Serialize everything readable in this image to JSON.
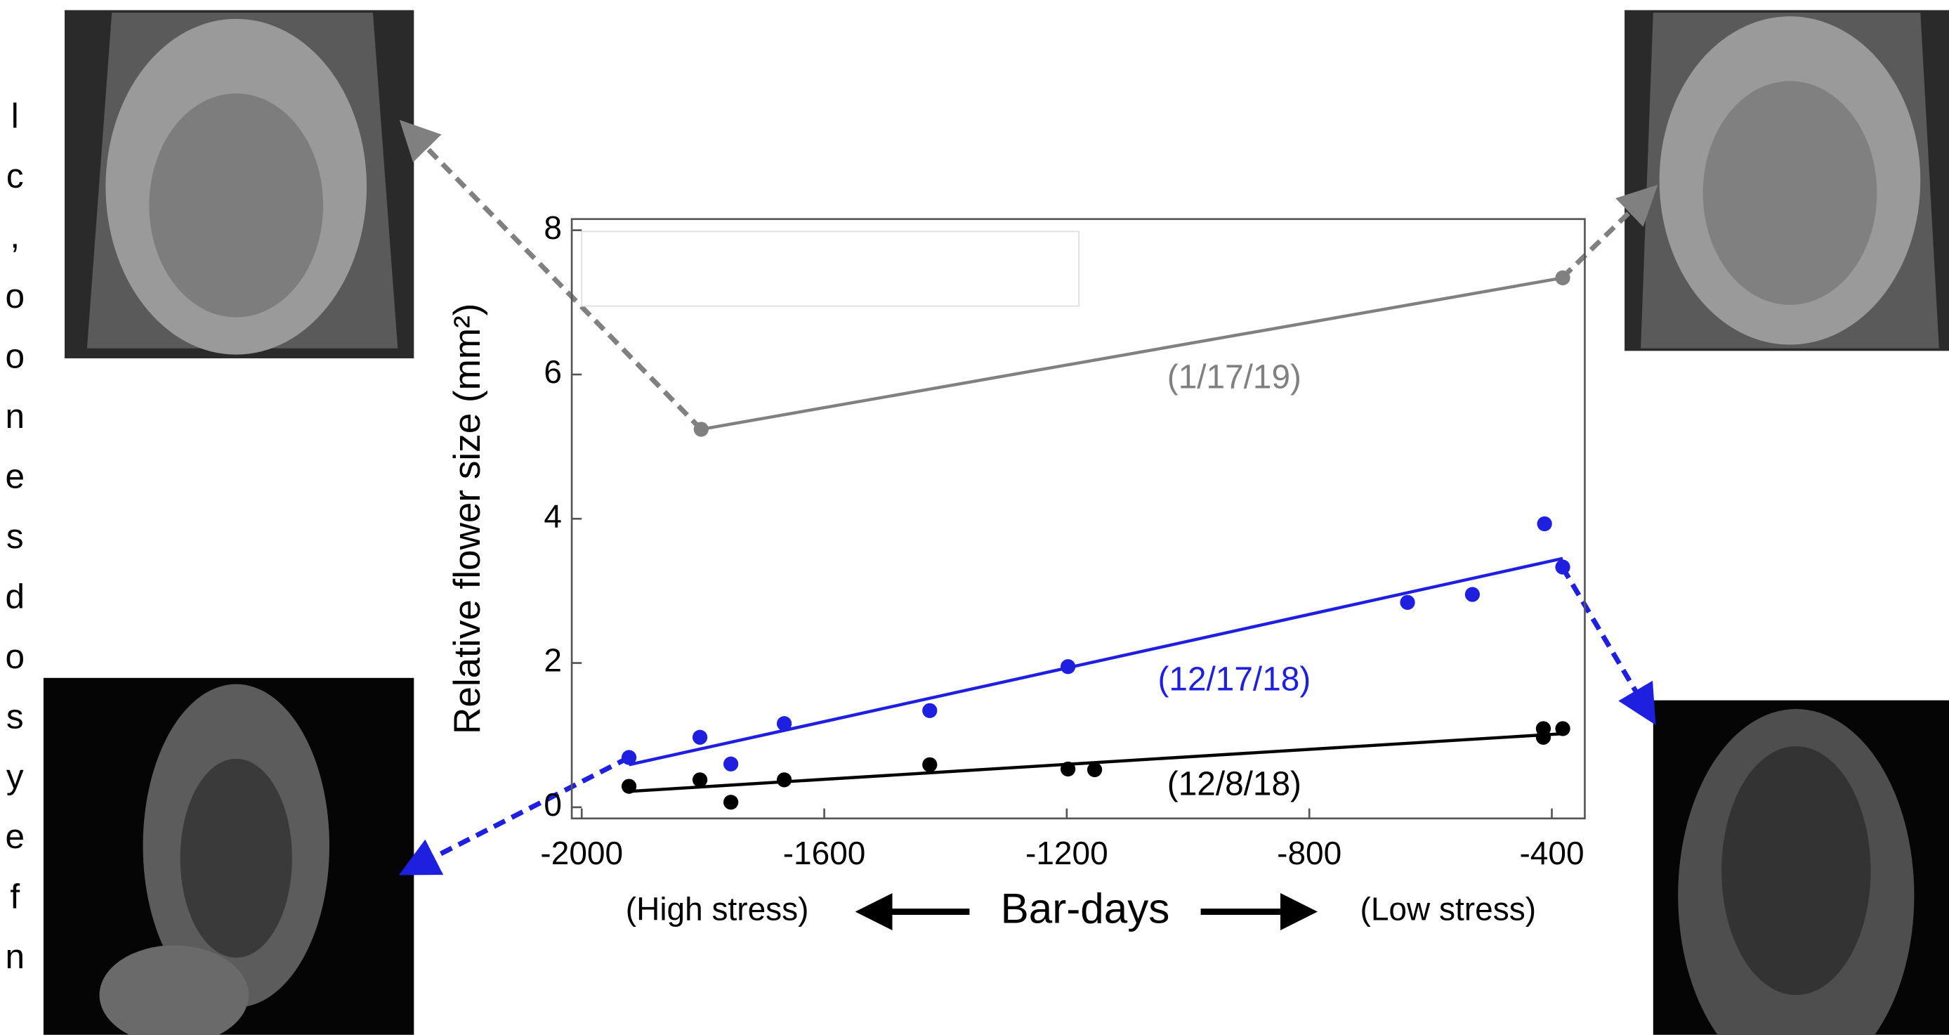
{
  "text_fragments": [
    "l",
    "c",
    ",",
    "o",
    "o",
    "n",
    "e",
    "s",
    "d",
    "o",
    "s",
    "y",
    "e",
    "f",
    "n"
  ],
  "chart_data": {
    "type": "scatter",
    "y_label": "Relative flower size (mm²)",
    "x_label": "Bar-days",
    "x_label_left": "(High stress)",
    "x_label_right": "(Low stress)",
    "xlim": [
      -2016.4,
      -345.6
    ],
    "ylim": [
      -0.155,
      8.155
    ],
    "xticks": [
      -2000,
      -1600,
      -1200,
      -800,
      -400
    ],
    "yticks": [
      0,
      2,
      4,
      6,
      8
    ],
    "series": [
      {
        "name": "(1/17/19)",
        "color": "#808080",
        "mode": "lines+markers",
        "x": [
          -1803,
          -382
        ],
        "values": [
          5.24,
          7.34
        ]
      },
      {
        "name": "(12/17/18)",
        "color": "#1f1fe0",
        "mode": "markers",
        "x": [
          -1922,
          -1805,
          -1754,
          -1666,
          -1426,
          -1198,
          -638,
          -531,
          -412,
          -382
        ],
        "values": [
          0.69,
          0.97,
          0.6,
          1.16,
          1.34,
          1.95,
          2.84,
          2.95,
          3.93,
          3.33
        ],
        "fit": {
          "x": [
            -1922,
            -382
          ],
          "values": [
            0.59,
            3.45
          ]
        }
      },
      {
        "name": "(12/8/18)",
        "color": "#000000",
        "mode": "markers",
        "x": [
          -1922,
          -1805,
          -1754,
          -1666,
          -1426,
          -1198,
          -1154,
          -414,
          -414,
          -382
        ],
        "values": [
          0.29,
          0.38,
          0.07,
          0.38,
          0.59,
          0.53,
          0.52,
          1.09,
          0.97,
          1.09
        ],
        "fit": {
          "x": [
            -1922,
            -382
          ],
          "values": [
            0.22,
            1.02
          ]
        }
      }
    ]
  }
}
